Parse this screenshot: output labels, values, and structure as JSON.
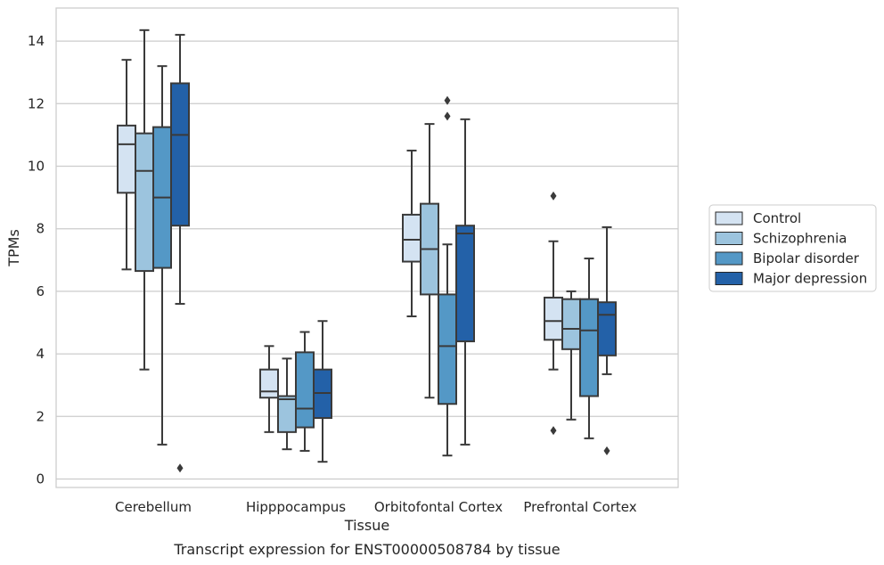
{
  "caption": "Transcript expression for ENST00000508784 by tissue",
  "chart_data": {
    "type": "box",
    "title": "",
    "xlabel": "Tissue",
    "ylabel": "TPMs",
    "ylim": [
      -0.25,
      15
    ],
    "yticks": [
      0,
      2,
      4,
      6,
      8,
      10,
      12,
      14
    ],
    "grid": "horizontal",
    "legend_position": "right",
    "categories": [
      "Cerebellum",
      "Hipppocampus",
      "Orbitofontal Cortex",
      "Prefrontal Cortex"
    ],
    "series": [
      {
        "name": "Control",
        "color": "#d4e3f2",
        "boxes": [
          {
            "whislo": 6.7,
            "q1": 9.15,
            "med": 10.7,
            "q3": 11.3,
            "whishi": 13.4,
            "fliers": []
          },
          {
            "whislo": 1.5,
            "q1": 2.6,
            "med": 2.8,
            "q3": 3.5,
            "whishi": 4.25,
            "fliers": []
          },
          {
            "whislo": 5.2,
            "q1": 6.95,
            "med": 7.65,
            "q3": 8.45,
            "whishi": 10.5,
            "fliers": []
          },
          {
            "whislo": 3.5,
            "q1": 4.45,
            "med": 5.05,
            "q3": 5.8,
            "whishi": 7.6,
            "fliers": [
              9.05,
              1.55
            ]
          }
        ]
      },
      {
        "name": "Schizophrenia",
        "color": "#9cc4de",
        "boxes": [
          {
            "whislo": 3.5,
            "q1": 6.65,
            "med": 9.85,
            "q3": 11.05,
            "whishi": 14.35,
            "fliers": []
          },
          {
            "whislo": 0.95,
            "q1": 1.5,
            "med": 2.55,
            "q3": 2.65,
            "whishi": 3.85,
            "fliers": []
          },
          {
            "whislo": 2.6,
            "q1": 5.9,
            "med": 7.35,
            "q3": 8.8,
            "whishi": 11.35,
            "fliers": []
          },
          {
            "whislo": 1.9,
            "q1": 4.15,
            "med": 4.8,
            "q3": 5.75,
            "whishi": 6.0,
            "fliers": []
          }
        ]
      },
      {
        "name": "Bipolar disorder",
        "color": "#5498c6",
        "boxes": [
          {
            "whislo": 1.1,
            "q1": 6.75,
            "med": 9.0,
            "q3": 11.25,
            "whishi": 13.2,
            "fliers": []
          },
          {
            "whislo": 0.9,
            "q1": 1.65,
            "med": 2.25,
            "q3": 4.05,
            "whishi": 4.7,
            "fliers": []
          },
          {
            "whislo": 0.75,
            "q1": 2.4,
            "med": 4.25,
            "q3": 5.9,
            "whishi": 7.5,
            "fliers": [
              12.1,
              11.6
            ]
          },
          {
            "whislo": 1.3,
            "q1": 2.65,
            "med": 4.75,
            "q3": 5.75,
            "whishi": 7.05,
            "fliers": []
          }
        ]
      },
      {
        "name": "Major depression",
        "color": "#2361a8",
        "boxes": [
          {
            "whislo": 5.6,
            "q1": 8.1,
            "med": 11.0,
            "q3": 12.65,
            "whishi": 14.2,
            "fliers": [
              0.35
            ]
          },
          {
            "whislo": 0.55,
            "q1": 1.95,
            "med": 2.75,
            "q3": 3.5,
            "whishi": 5.05,
            "fliers": []
          },
          {
            "whislo": 1.1,
            "q1": 4.4,
            "med": 7.85,
            "q3": 8.1,
            "whishi": 11.5,
            "fliers": []
          },
          {
            "whislo": 3.35,
            "q1": 3.95,
            "med": 5.25,
            "q3": 5.65,
            "whishi": 8.05,
            "fliers": [
              0.9
            ]
          }
        ]
      }
    ]
  }
}
